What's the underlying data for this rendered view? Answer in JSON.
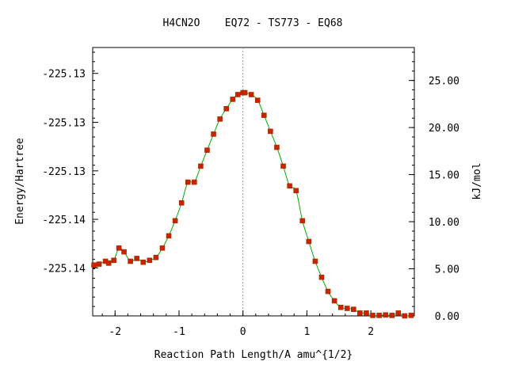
{
  "chart_data": {
    "type": "line",
    "title": "H4CN2O    EQ72 - TS773 - EQ68",
    "xlabel": "Reaction Path Length/A amu^{1/2}",
    "ylabel_left": "Energy/Hartree",
    "ylabel_right": "kJ/mol",
    "xlim": [
      -2.35,
      2.68
    ],
    "ylim_kj": [
      0,
      28.5
    ],
    "x_ticks": [
      -2,
      -1,
      0,
      1,
      2
    ],
    "x_tick_labels": [
      "-2",
      "-1",
      "0",
      "1",
      "2"
    ],
    "left_ticks_kj": [
      5.1,
      10.25,
      15.4,
      20.55,
      25.75
    ],
    "left_tick_labels": [
      "-225.14",
      "-225.14",
      "-225.13",
      "-225.13",
      "-225.13"
    ],
    "right_ticks_kj": [
      0,
      5,
      10,
      15,
      20,
      25
    ],
    "right_tick_labels": [
      "0.00",
      "5.00",
      "10.00",
      "15.00",
      "20.00",
      "25.00"
    ],
    "ts_marker_x": 0.0,
    "colors": {
      "line": "#00aa00",
      "point": "#cc2200",
      "point_edge": "#993300",
      "ts_marker": "#999999"
    },
    "series": [
      {
        "x": [
          -2.33,
          -2.25,
          -2.15,
          -2.1,
          -2.02,
          -1.94,
          -1.86,
          -1.76,
          -1.66,
          -1.56,
          -1.46,
          -1.36,
          -1.26,
          -1.16,
          -1.06,
          -0.96,
          -0.86,
          -0.76,
          -0.66,
          -0.56,
          -0.46,
          -0.36,
          -0.26,
          -0.16,
          -0.08,
          0.0,
          0.03,
          0.13,
          0.23,
          0.33,
          0.43,
          0.53,
          0.63,
          0.73,
          0.83,
          0.93,
          1.03,
          1.13,
          1.23,
          1.33,
          1.43,
          1.53,
          1.63,
          1.73,
          1.83,
          1.93,
          2.03,
          2.13,
          2.23,
          2.33,
          2.43,
          2.53,
          2.63
        ],
        "y_kj": [
          5.4,
          5.5,
          5.8,
          5.6,
          5.9,
          7.2,
          6.8,
          5.8,
          6.1,
          5.7,
          5.9,
          6.2,
          7.2,
          8.5,
          10.1,
          12.0,
          14.2,
          14.2,
          15.9,
          17.6,
          19.3,
          20.9,
          22.0,
          23.0,
          23.5,
          23.7,
          23.7,
          23.5,
          22.9,
          21.3,
          19.6,
          17.9,
          15.9,
          13.8,
          13.3,
          10.1,
          7.9,
          5.8,
          4.1,
          2.6,
          1.6,
          0.9,
          0.8,
          0.7,
          0.3,
          0.3,
          0.05,
          0.05,
          0.1,
          0.05,
          0.3,
          0.0,
          0.05
        ]
      }
    ]
  }
}
